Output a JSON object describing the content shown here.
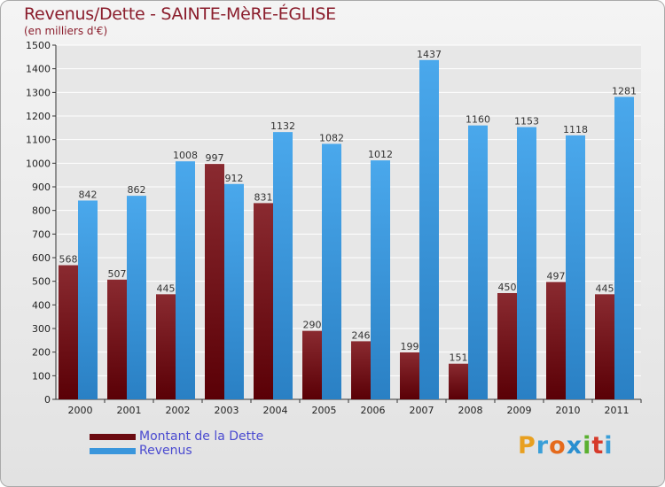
{
  "title": "Revenus/Dette - SAINTE-MèRE-ÉGLISE",
  "subtitle": "(en milliers d'€)",
  "legend": {
    "items": [
      {
        "label": "Montant de la Dette",
        "color": "#6b0a10"
      },
      {
        "label": "Revenus",
        "color": "#3a96dc"
      }
    ]
  },
  "logo": {
    "letters": [
      "P",
      "r",
      "o",
      "x",
      "i",
      "t",
      "i"
    ],
    "colors": [
      "#e8a020",
      "#3a9fd8",
      "#e56a1c",
      "#2a8fd0",
      "#5ab030",
      "#d63a2a",
      "#3a9fd8"
    ]
  },
  "chart_data": {
    "type": "bar",
    "categories": [
      "2000",
      "2001",
      "2002",
      "2003",
      "2004",
      "2005",
      "2006",
      "2007",
      "2008",
      "2009",
      "2010",
      "2011"
    ],
    "series": [
      {
        "name": "Montant de la Dette",
        "values": [
          568,
          507,
          445,
          997,
          831,
          290,
          246,
          199,
          151,
          450,
          497,
          445
        ],
        "color": "#6b0a10"
      },
      {
        "name": "Revenus",
        "values": [
          842,
          862,
          1008,
          912,
          1132,
          1082,
          1012,
          1437,
          1160,
          1153,
          1118,
          1281
        ],
        "color": "#3a96dc"
      }
    ],
    "yticks": [
      0,
      100,
      200,
      300,
      400,
      500,
      600,
      700,
      800,
      900,
      1000,
      1100,
      1200,
      1300,
      1400,
      1500
    ],
    "ylim": [
      0,
      1500
    ],
    "grid": true,
    "legend_position": "bottom-left"
  }
}
